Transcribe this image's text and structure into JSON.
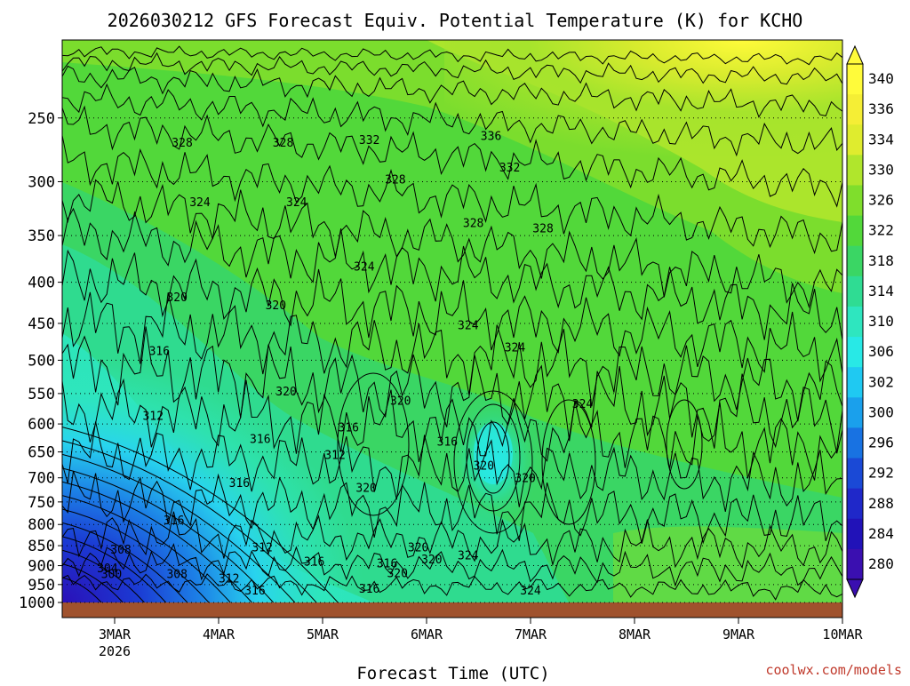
{
  "chart_data": {
    "type": "heatmap",
    "title": "2026030212 GFS Forecast Equiv. Potential Temperature (K) for KCHO",
    "xlabel": "Forecast Time (UTC)",
    "ylabel": "",
    "x_ticks": [
      "3MAR",
      "4MAR",
      "5MAR",
      "6MAR",
      "7MAR",
      "8MAR",
      "9MAR",
      "10MAR"
    ],
    "x_year_label": "2026",
    "y_ticks": [
      250,
      300,
      350,
      400,
      450,
      500,
      550,
      600,
      650,
      700,
      750,
      800,
      850,
      900,
      950,
      1000
    ],
    "y_axis_reversed": true,
    "ylim": [
      1000,
      200
    ],
    "grid": "dotted horizontal at pressure levels",
    "colorbar": {
      "ticks": [
        340,
        336,
        334,
        330,
        326,
        322,
        318,
        314,
        310,
        306,
        302,
        300,
        296,
        292,
        288,
        284,
        280
      ],
      "colors": [
        "#fffb3a",
        "#f5ee35",
        "#dfec2e",
        "#b0e62c",
        "#7fde2c",
        "#52d83a",
        "#3ad664",
        "#2fdc93",
        "#2ee6bf",
        "#28e9e6",
        "#1fc9f2",
        "#1aa0ec",
        "#1872e2",
        "#1a49d6",
        "#1f28c9",
        "#2112b8",
        "#3a0fb0"
      ],
      "extend": "both"
    },
    "contour_labels": [
      {
        "text": "328",
        "x": 1.65,
        "p": 270
      },
      {
        "text": "328",
        "x": 2.62,
        "p": 270
      },
      {
        "text": "332",
        "x": 3.45,
        "p": 268
      },
      {
        "text": "336",
        "x": 4.62,
        "p": 265
      },
      {
        "text": "332",
        "x": 4.8,
        "p": 290
      },
      {
        "text": "328",
        "x": 3.7,
        "p": 300
      },
      {
        "text": "324",
        "x": 1.82,
        "p": 320
      },
      {
        "text": "324",
        "x": 2.75,
        "p": 320
      },
      {
        "text": "328",
        "x": 4.45,
        "p": 340
      },
      {
        "text": "328",
        "x": 5.12,
        "p": 345
      },
      {
        "text": "324",
        "x": 3.4,
        "p": 385
      },
      {
        "text": "320",
        "x": 1.6,
        "p": 420
      },
      {
        "text": "320",
        "x": 2.55,
        "p": 430
      },
      {
        "text": "324",
        "x": 4.4,
        "p": 455
      },
      {
        "text": "324",
        "x": 4.85,
        "p": 485
      },
      {
        "text": "316",
        "x": 1.43,
        "p": 490
      },
      {
        "text": "320",
        "x": 2.65,
        "p": 550
      },
      {
        "text": "320",
        "x": 3.75,
        "p": 565
      },
      {
        "text": "324",
        "x": 5.5,
        "p": 570
      },
      {
        "text": "312",
        "x": 1.37,
        "p": 590
      },
      {
        "text": "316",
        "x": 3.25,
        "p": 610
      },
      {
        "text": "316",
        "x": 2.4,
        "p": 630
      },
      {
        "text": "316",
        "x": 4.2,
        "p": 635
      },
      {
        "text": "312",
        "x": 3.12,
        "p": 660
      },
      {
        "text": "320",
        "x": 4.55,
        "p": 680
      },
      {
        "text": "320",
        "x": 4.95,
        "p": 705
      },
      {
        "text": "316",
        "x": 2.2,
        "p": 715
      },
      {
        "text": "320",
        "x": 3.42,
        "p": 725
      },
      {
        "text": "316",
        "x": 1.57,
        "p": 795
      },
      {
        "text": "312",
        "x": 2.42,
        "p": 860
      },
      {
        "text": "320",
        "x": 3.92,
        "p": 860
      },
      {
        "text": "308",
        "x": 1.06,
        "p": 865
      },
      {
        "text": "324",
        "x": 4.4,
        "p": 880
      },
      {
        "text": "316",
        "x": 2.92,
        "p": 895
      },
      {
        "text": "316",
        "x": 3.62,
        "p": 900
      },
      {
        "text": "320",
        "x": 4.05,
        "p": 890
      },
      {
        "text": "304",
        "x": 0.93,
        "p": 912
      },
      {
        "text": "300",
        "x": 0.97,
        "p": 928
      },
      {
        "text": "308",
        "x": 1.6,
        "p": 928
      },
      {
        "text": "320",
        "x": 3.72,
        "p": 925
      },
      {
        "text": "312",
        "x": 2.1,
        "p": 940
      },
      {
        "text": "316",
        "x": 3.45,
        "p": 968
      },
      {
        "text": "316",
        "x": 2.35,
        "p": 972
      },
      {
        "text": "324",
        "x": 5.0,
        "p": 972
      }
    ]
  },
  "credit": "coolwx.com/models"
}
